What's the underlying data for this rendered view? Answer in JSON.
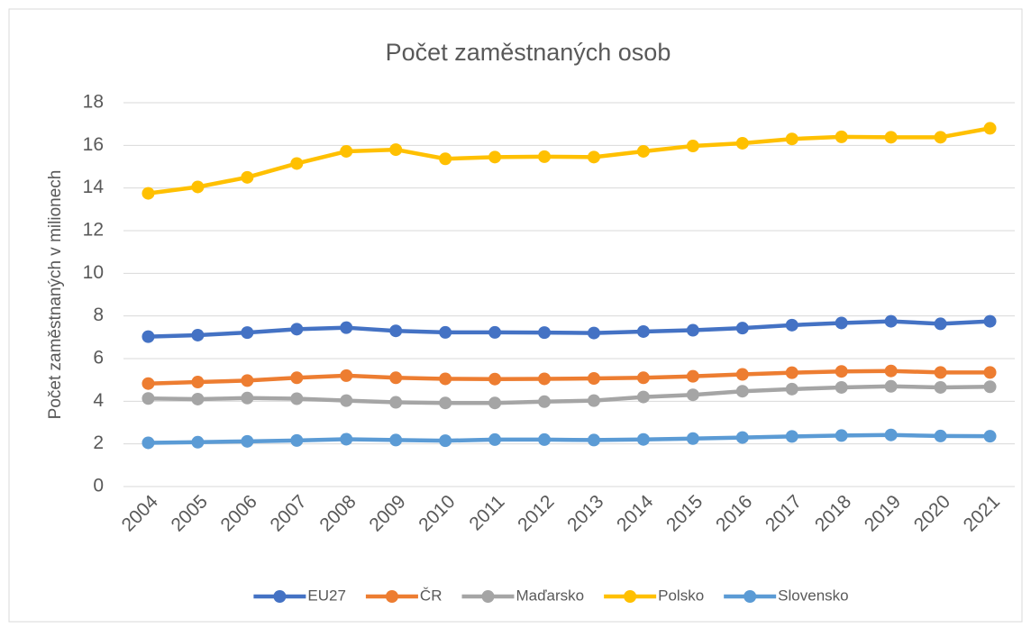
{
  "chart_data": {
    "type": "line",
    "title": "Počet zaměstnaných osob",
    "y_label": "Počet zaměstnaných v milionech",
    "categories": [
      "2004",
      "2005",
      "2006",
      "2007",
      "2008",
      "2009",
      "2010",
      "2011",
      "2012",
      "2013",
      "2014",
      "2015",
      "2016",
      "2017",
      "2018",
      "2019",
      "2020",
      "2021"
    ],
    "series": [
      {
        "name": "EU27",
        "color": "#4472c4",
        "values": [
          7.03,
          7.1,
          7.22,
          7.38,
          7.45,
          7.3,
          7.23,
          7.23,
          7.22,
          7.2,
          7.27,
          7.33,
          7.43,
          7.57,
          7.67,
          7.75,
          7.63,
          7.75
        ]
      },
      {
        "name": "ČR",
        "color": "#ed7d31",
        "values": [
          4.83,
          4.9,
          4.97,
          5.1,
          5.2,
          5.1,
          5.05,
          5.04,
          5.05,
          5.07,
          5.1,
          5.17,
          5.26,
          5.34,
          5.4,
          5.42,
          5.35,
          5.35
        ]
      },
      {
        "name": "Maďarsko",
        "color": "#a5a5a5",
        "values": [
          4.13,
          4.1,
          4.15,
          4.12,
          4.03,
          3.95,
          3.92,
          3.92,
          3.98,
          4.03,
          4.2,
          4.3,
          4.47,
          4.57,
          4.65,
          4.7,
          4.65,
          4.68
        ]
      },
      {
        "name": "Polsko",
        "color": "#ffc000",
        "values": [
          13.75,
          14.05,
          14.5,
          15.15,
          15.72,
          15.8,
          15.37,
          15.45,
          15.47,
          15.45,
          15.72,
          15.97,
          16.1,
          16.3,
          16.4,
          16.38,
          16.38,
          16.8
        ]
      },
      {
        "name": "Slovensko",
        "color": "#5b9bd5",
        "values": [
          2.05,
          2.08,
          2.12,
          2.16,
          2.22,
          2.18,
          2.15,
          2.2,
          2.2,
          2.18,
          2.21,
          2.25,
          2.3,
          2.35,
          2.39,
          2.42,
          2.37,
          2.36
        ]
      }
    ],
    "ylim": [
      0,
      18
    ],
    "yticks": [
      0,
      2,
      4,
      6,
      8,
      10,
      12,
      14,
      16,
      18
    ],
    "grid": true,
    "legend": "bottom"
  }
}
